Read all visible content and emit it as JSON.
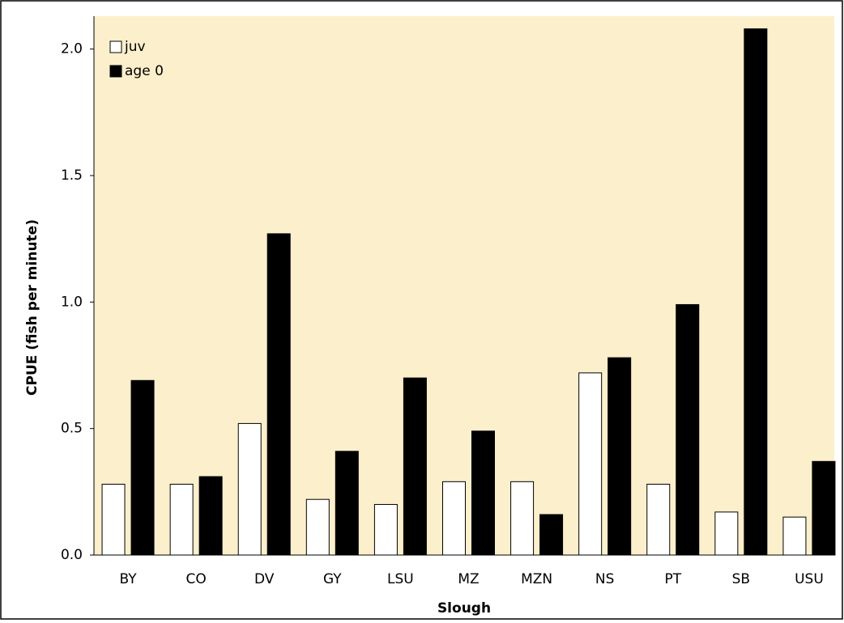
{
  "chart_data": {
    "type": "bar",
    "x_label": "Slough",
    "y_label": "CPUE (fish per minute)",
    "categories": [
      "BY",
      "CO",
      "DV",
      "GY",
      "LSU",
      "MZ",
      "MZN",
      "NS",
      "PT",
      "SB",
      "USU"
    ],
    "series": [
      {
        "name": "juv",
        "color": "#ffffff",
        "values": [
          0.28,
          0.28,
          0.52,
          0.22,
          0.2,
          0.29,
          0.29,
          0.72,
          0.28,
          0.17,
          0.15
        ]
      },
      {
        "name": "age 0",
        "color": "#000000",
        "values": [
          0.69,
          0.31,
          1.27,
          0.41,
          0.7,
          0.49,
          0.16,
          0.78,
          0.99,
          2.08,
          0.37
        ]
      }
    ],
    "ylim": [
      0,
      2.13
    ],
    "yticks": [
      {
        "value": 0,
        "label": "0.0"
      },
      0.5,
      {
        "value": 1,
        "label": "1.0"
      },
      1.5,
      {
        "value": 2,
        "label": "2.0"
      }
    ],
    "legend": "upper left"
  }
}
